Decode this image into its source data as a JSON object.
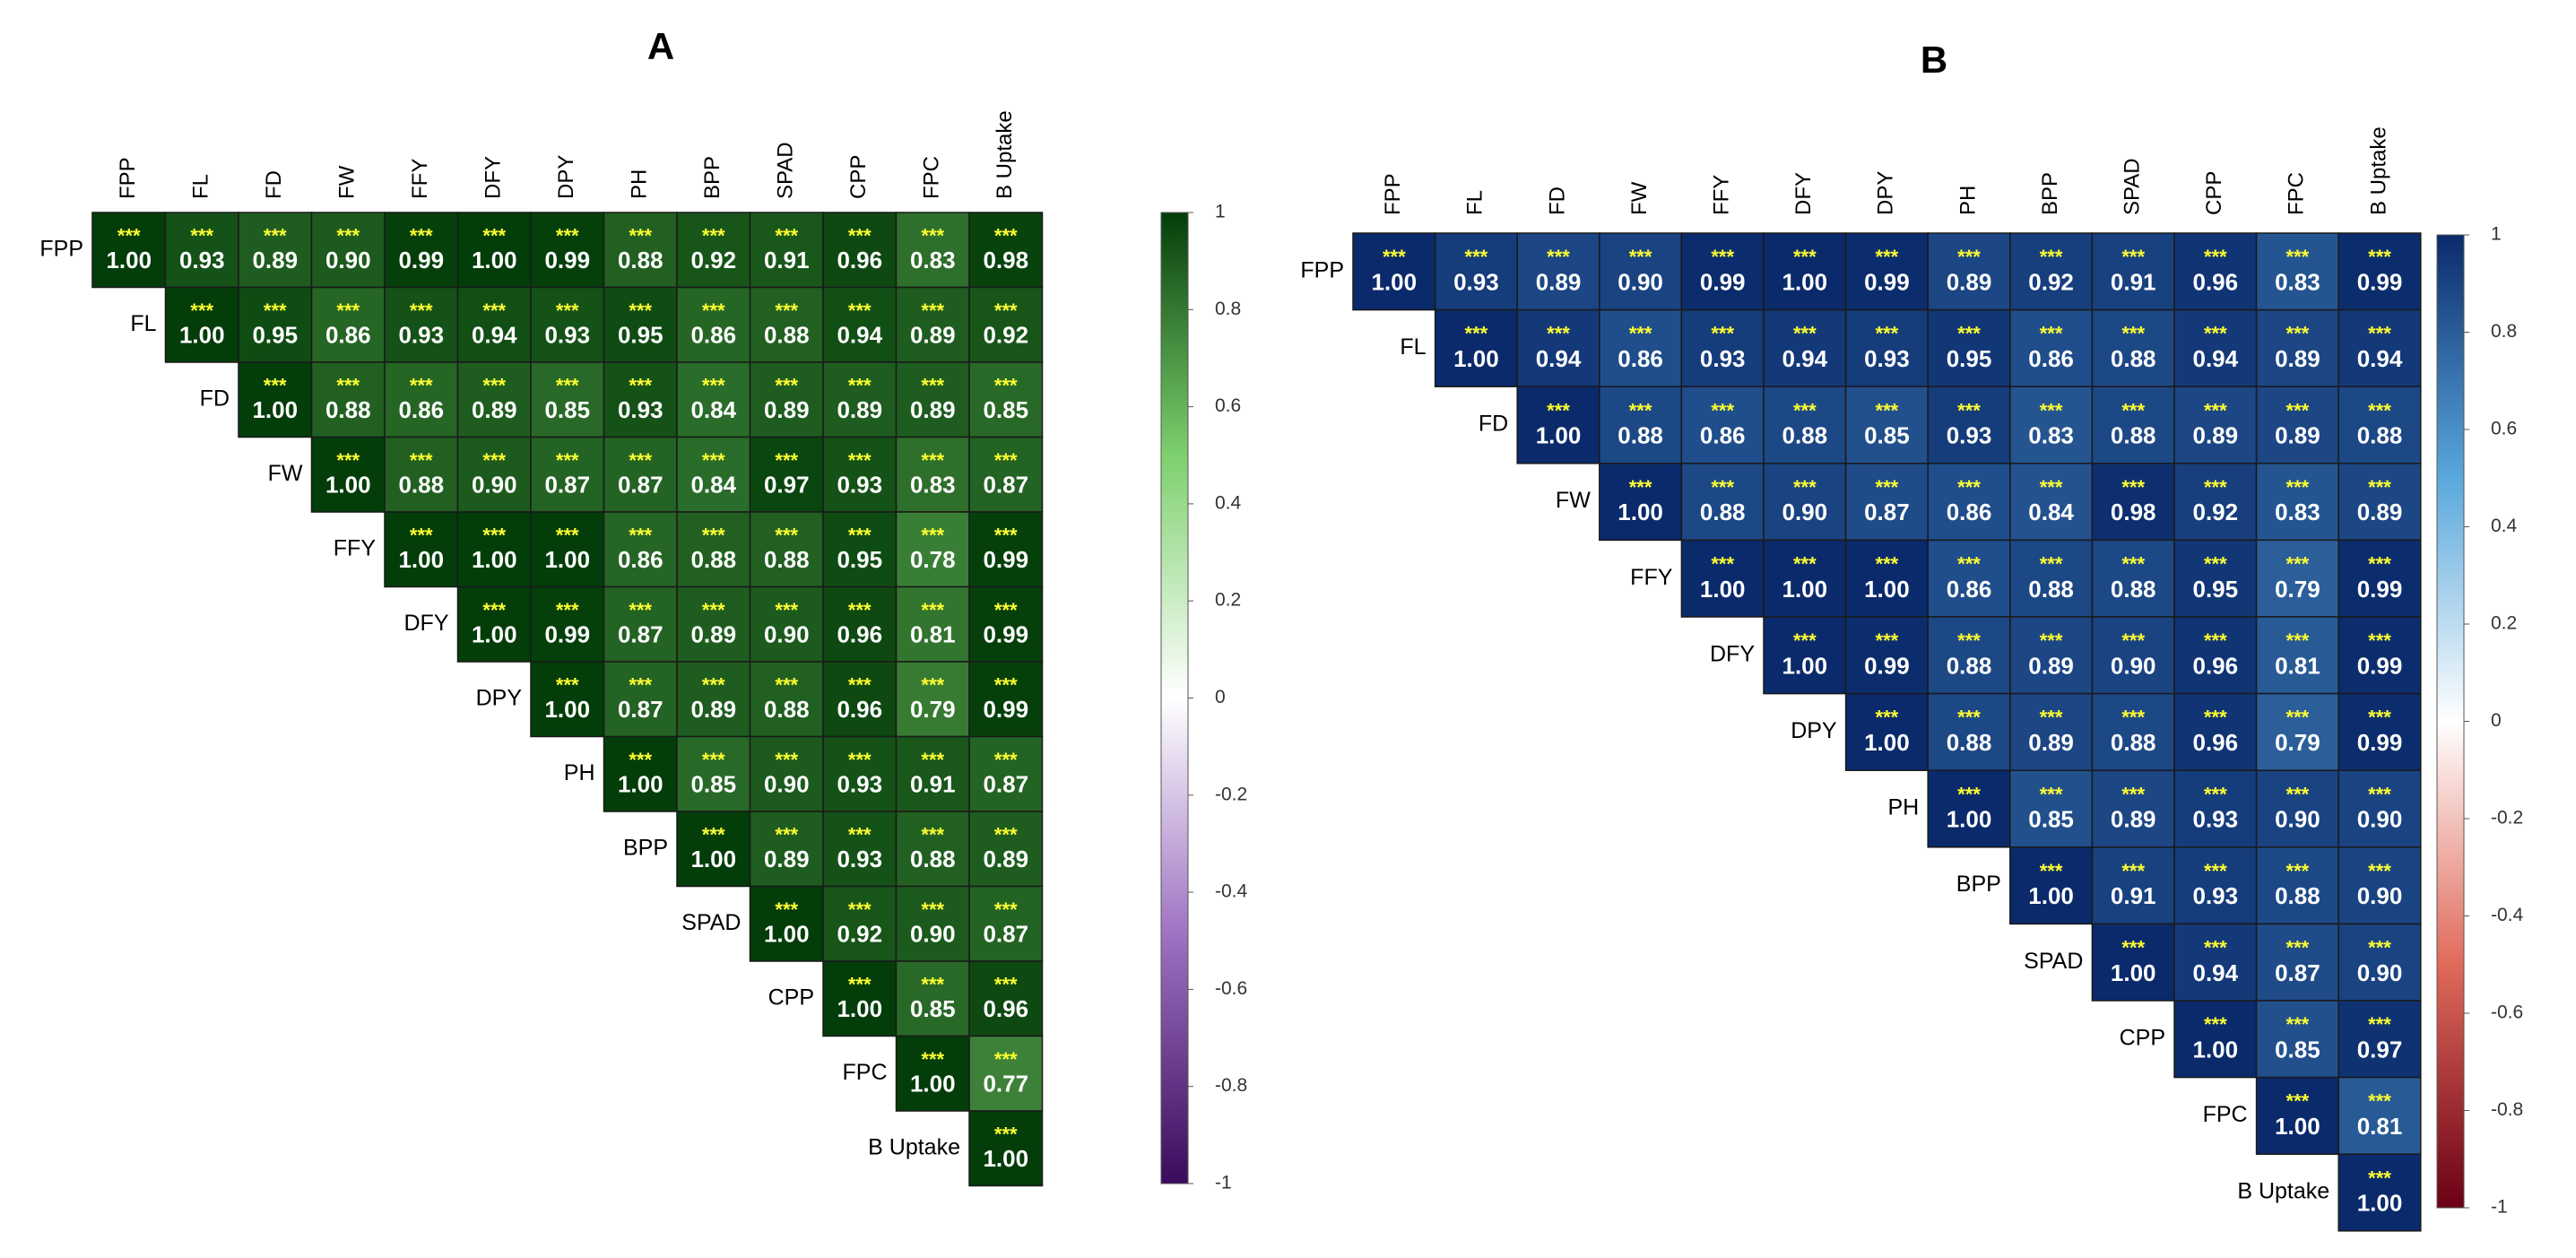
{
  "chart_data": [
    {
      "type": "heatmap",
      "panel_label": "A",
      "variables": [
        "FPP",
        "FL",
        "FD",
        "FW",
        "FFY",
        "DFY",
        "DPY",
        "PH",
        "BPP",
        "SPAD",
        "CPP",
        "FPC",
        "B Uptake"
      ],
      "significance_marker": "***",
      "matrix_upper": [
        [
          1.0,
          0.93,
          0.89,
          0.9,
          0.99,
          1.0,
          0.99,
          0.88,
          0.92,
          0.91,
          0.96,
          0.83,
          0.98
        ],
        [
          1.0,
          0.95,
          0.86,
          0.93,
          0.94,
          0.93,
          0.95,
          0.86,
          0.88,
          0.94,
          0.89,
          0.92
        ],
        [
          1.0,
          0.88,
          0.86,
          0.89,
          0.85,
          0.93,
          0.84,
          0.89,
          0.89,
          0.89,
          0.85
        ],
        [
          1.0,
          0.88,
          0.9,
          0.87,
          0.87,
          0.84,
          0.97,
          0.93,
          0.83,
          0.87
        ],
        [
          1.0,
          1.0,
          1.0,
          0.86,
          0.88,
          0.88,
          0.95,
          0.78,
          0.99
        ],
        [
          1.0,
          0.99,
          0.87,
          0.89,
          0.9,
          0.96,
          0.81,
          0.99
        ],
        [
          1.0,
          0.87,
          0.89,
          0.88,
          0.96,
          0.79,
          0.99
        ],
        [
          1.0,
          0.85,
          0.9,
          0.93,
          0.91,
          0.87
        ],
        [
          1.0,
          0.89,
          0.93,
          0.88,
          0.89
        ],
        [
          1.0,
          0.92,
          0.9,
          0.87
        ],
        [
          1.0,
          0.85,
          0.96
        ],
        [
          1.0,
          0.77
        ],
        [
          1.0
        ]
      ],
      "colorbar": {
        "range": [
          -1,
          1
        ],
        "ticks": [
          "1",
          "0.8",
          "0.6",
          "0.4",
          "0.2",
          "0",
          "-0.2",
          "-0.4",
          "-0.6",
          "-0.8",
          "-1"
        ],
        "colors": [
          "#3a0b5c",
          "#9b6fc0",
          "#ffffff",
          "#7ed06e",
          "#033d09"
        ]
      },
      "cell_border_color": "#1a1a1a",
      "value_text_color": "#ffffff",
      "star_color": "#ffff33"
    },
    {
      "type": "heatmap",
      "panel_label": "B",
      "variables": [
        "FPP",
        "FL",
        "FD",
        "FW",
        "FFY",
        "DFY",
        "DPY",
        "PH",
        "BPP",
        "SPAD",
        "CPP",
        "FPC",
        "B Uptake"
      ],
      "significance_marker": "***",
      "matrix_upper": [
        [
          1.0,
          0.93,
          0.89,
          0.9,
          0.99,
          1.0,
          0.99,
          0.89,
          0.92,
          0.91,
          0.96,
          0.83,
          0.99
        ],
        [
          1.0,
          0.94,
          0.86,
          0.93,
          0.94,
          0.93,
          0.95,
          0.86,
          0.88,
          0.94,
          0.89,
          0.94
        ],
        [
          1.0,
          0.88,
          0.86,
          0.88,
          0.85,
          0.93,
          0.83,
          0.88,
          0.89,
          0.89,
          0.88
        ],
        [
          1.0,
          0.88,
          0.9,
          0.87,
          0.86,
          0.84,
          0.98,
          0.92,
          0.83,
          0.89
        ],
        [
          1.0,
          1.0,
          1.0,
          0.86,
          0.88,
          0.88,
          0.95,
          0.79,
          0.99
        ],
        [
          1.0,
          0.99,
          0.88,
          0.89,
          0.9,
          0.96,
          0.81,
          0.99
        ],
        [
          1.0,
          0.88,
          0.89,
          0.88,
          0.96,
          0.79,
          0.99
        ],
        [
          1.0,
          0.85,
          0.89,
          0.93,
          0.9,
          0.9
        ],
        [
          1.0,
          0.91,
          0.93,
          0.88,
          0.9
        ],
        [
          1.0,
          0.94,
          0.87,
          0.9
        ],
        [
          1.0,
          0.85,
          0.97
        ],
        [
          1.0,
          0.81
        ],
        [
          1.0
        ]
      ],
      "colorbar": {
        "range": [
          -1,
          1
        ],
        "ticks": [
          "1",
          "0.8",
          "0.6",
          "0.4",
          "0.2",
          "0",
          "-0.2",
          "-0.4",
          "-0.6",
          "-0.8",
          "-1"
        ],
        "colors": [
          "#6b0015",
          "#e06a5a",
          "#ffffff",
          "#5aa8dc",
          "#0a2a6b"
        ]
      },
      "cell_border_color": "#1a1a1a",
      "value_text_color": "#ffffff",
      "star_color": "#ffff33"
    }
  ]
}
